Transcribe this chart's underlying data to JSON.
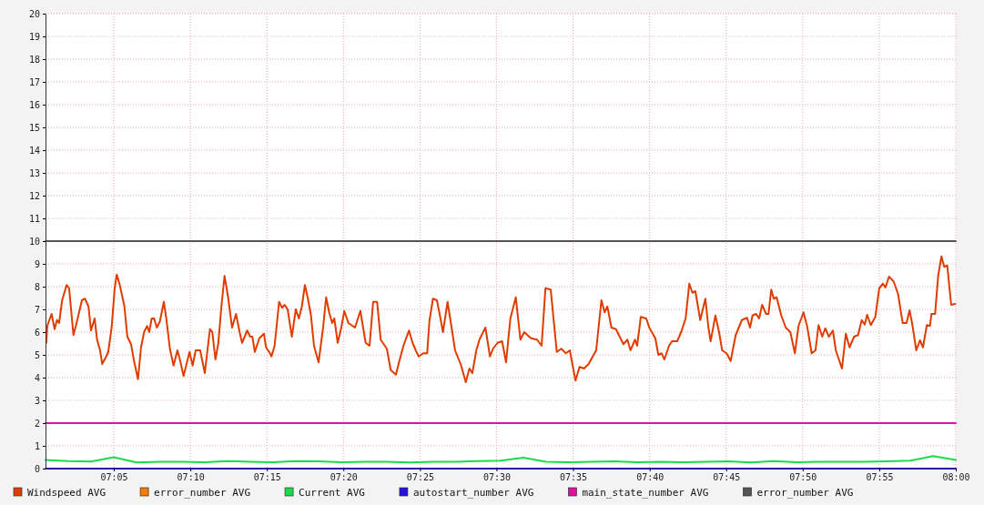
{
  "chart_data": {
    "type": "line",
    "xlim": [
      7.009,
      8.0
    ],
    "ylim": [
      0,
      20
    ],
    "yticks": [
      0,
      1,
      2,
      3,
      4,
      5,
      6,
      7,
      8,
      9,
      10,
      11,
      12,
      13,
      14,
      15,
      16,
      17,
      18,
      19,
      20
    ],
    "xticks": [
      {
        "value": 7.0833,
        "label": "07:05"
      },
      {
        "value": 7.1667,
        "label": "07:10"
      },
      {
        "value": 7.25,
        "label": "07:15"
      },
      {
        "value": 7.3333,
        "label": "07:20"
      },
      {
        "value": 7.4167,
        "label": "07:25"
      },
      {
        "value": 7.5,
        "label": "07:30"
      },
      {
        "value": 7.5833,
        "label": "07:35"
      },
      {
        "value": 7.6667,
        "label": "07:40"
      },
      {
        "value": 7.75,
        "label": "07:45"
      },
      {
        "value": 7.8333,
        "label": "07:50"
      },
      {
        "value": 7.9167,
        "label": "07:55"
      },
      {
        "value": 8.0,
        "label": "08:00"
      }
    ],
    "grid": true,
    "legend": "bottom",
    "marker": "none",
    "line_style": "solid",
    "series": [
      {
        "name": "Windspeed AVG",
        "color": "#e03c00",
        "x": [
          7.0099,
          7.0109,
          7.0156,
          7.0189,
          7.0215,
          7.0238,
          7.0271,
          7.032,
          7.0347,
          7.0394,
          7.0436,
          7.0486,
          7.0519,
          7.0558,
          7.0585,
          7.0625,
          7.0651,
          7.0684,
          7.0707,
          7.0751,
          7.0773,
          7.081,
          7.0843,
          7.0866,
          7.0899,
          7.0949,
          7.0981,
          7.1021,
          7.1054,
          7.1097,
          7.113,
          7.1163,
          7.1196,
          7.1219,
          7.1246,
          7.1272,
          7.1302,
          7.1335,
          7.1378,
          7.1405,
          7.1444,
          7.1484,
          7.1526,
          7.1553,
          7.1593,
          7.1658,
          7.1692,
          7.1725,
          7.1774,
          7.1824,
          7.188,
          7.1906,
          7.194,
          7.1972,
          7.2005,
          7.2039,
          7.2078,
          7.2121,
          7.2164,
          7.2203,
          7.223,
          7.2286,
          7.2319,
          7.2342,
          7.2369,
          7.2418,
          7.2468,
          7.2491,
          7.2534,
          7.255,
          7.2584,
          7.2633,
          7.2666,
          7.2693,
          7.2726,
          7.2772,
          7.2815,
          7.2848,
          7.2881,
          7.2914,
          7.2947,
          7.298,
          7.3013,
          7.3063,
          7.3112,
          7.3145,
          7.3178,
          7.3211,
          7.3234,
          7.3271,
          7.331,
          7.3343,
          7.3387,
          7.3459,
          7.3518,
          7.3575,
          7.3618,
          7.3657,
          7.37,
          7.3739,
          7.3806,
          7.3848,
          7.3905,
          7.3938,
          7.3987,
          7.4047,
          7.4086,
          7.412,
          7.4153,
          7.4202,
          7.4245,
          7.4269,
          7.4308,
          7.4351,
          7.4384,
          7.4417,
          7.4467,
          7.4506,
          7.4549,
          7.4615,
          7.4665,
          7.4705,
          7.4737,
          7.478,
          7.4814,
          7.4879,
          7.4929,
          7.4962,
          7.5012,
          7.5061,
          7.5104,
          7.5151,
          7.521,
          7.526,
          7.5302,
          7.5375,
          7.5441,
          7.5491,
          7.5533,
          7.559,
          7.5656,
          7.5706,
          7.5755,
          7.5798,
          7.586,
          7.5904,
          7.5953,
          7.6003,
          7.6085,
          7.6142,
          7.6177,
          7.6207,
          7.6251,
          7.63,
          7.6382,
          7.6425,
          7.6459,
          7.6508,
          7.6531,
          7.6571,
          7.663,
          7.6663,
          7.6729,
          7.6762,
          7.6796,
          7.6828,
          7.6878,
          7.6911,
          7.6967,
          7.701,
          7.7059,
          7.7099,
          7.7133,
          7.7165,
          7.7218,
          7.7274,
          7.7307,
          7.7331,
          7.7383,
          7.7423,
          7.7456,
          7.7505,
          7.7549,
          7.7604,
          7.7671,
          7.7727,
          7.776,
          7.7787,
          7.7826,
          7.7859,
          7.7892,
          7.7935,
          7.7961,
          7.7991,
          7.8018,
          7.805,
          7.81,
          7.8149,
          7.8199,
          7.8248,
          7.8288,
          7.8342,
          7.8381,
          7.8431,
          7.8473,
          7.8506,
          7.8546,
          7.8579,
          7.8619,
          7.8662,
          7.8694,
          7.8761,
          7.8803,
          7.8843,
          7.8893,
          7.8936,
          7.8976,
          7.9009,
          7.9035,
          7.9075,
          7.9124,
          7.9167,
          7.9207,
          7.9234,
          7.9273,
          7.9323,
          7.9372,
          7.9422,
          7.9464,
          7.9497,
          7.9524,
          7.957,
          7.961,
          7.9643,
          7.9685,
          7.9719,
          7.9735,
          7.9775,
          7.9808,
          7.9844,
          7.9874,
          7.9907,
          7.995,
          7.9993
        ],
        "values": [
          5.53,
          6.27,
          6.8,
          6.13,
          6.53,
          6.4,
          7.4,
          8.07,
          7.93,
          5.87,
          6.53,
          7.4,
          7.47,
          7.13,
          6.07,
          6.6,
          5.67,
          5.2,
          4.6,
          4.93,
          5.13,
          6.2,
          7.93,
          8.53,
          8.07,
          7.13,
          5.8,
          5.47,
          4.73,
          3.93,
          5.33,
          6,
          6.27,
          6,
          6.6,
          6.6,
          6.2,
          6.47,
          7.33,
          6.6,
          5.27,
          4.53,
          5.2,
          4.8,
          4.07,
          5.13,
          4.53,
          5.2,
          5.2,
          4.2,
          6.13,
          6,
          4.8,
          5.53,
          7.13,
          8.47,
          7.53,
          6.2,
          6.8,
          6,
          5.53,
          6.07,
          5.8,
          5.8,
          5.13,
          5.73,
          5.93,
          5.33,
          5.07,
          4.93,
          5.4,
          7.33,
          7.07,
          7.2,
          7,
          5.8,
          7,
          6.6,
          7.13,
          8.07,
          7.47,
          6.73,
          5.4,
          4.67,
          6.2,
          7.53,
          6.87,
          6.4,
          6.6,
          5.53,
          6.2,
          6.93,
          6.4,
          6.2,
          6.93,
          5.53,
          5.4,
          7.33,
          7.33,
          5.67,
          5.27,
          4.33,
          4.13,
          4.67,
          5.4,
          6.07,
          5.53,
          5.2,
          4.93,
          5.07,
          5.07,
          6.47,
          7.47,
          7.4,
          6.73,
          6,
          7.33,
          6.33,
          5.2,
          4.53,
          3.8,
          4.4,
          4.2,
          5.2,
          5.67,
          6.2,
          4.93,
          5.27,
          5.53,
          5.6,
          4.67,
          6.6,
          7.53,
          5.67,
          6,
          5.73,
          5.67,
          5.4,
          7.93,
          7.87,
          5.13,
          5.27,
          5.07,
          5.2,
          3.87,
          4.47,
          4.4,
          4.6,
          5.2,
          7.4,
          6.87,
          7.13,
          6.2,
          6.13,
          5.47,
          5.67,
          5.2,
          5.67,
          5.4,
          6.67,
          6.6,
          6.2,
          5.73,
          5,
          5.07,
          4.8,
          5.4,
          5.6,
          5.6,
          6,
          6.6,
          8.13,
          7.73,
          7.8,
          6.53,
          7.47,
          6.2,
          5.6,
          6.73,
          6,
          5.2,
          5.07,
          4.73,
          5.87,
          6.53,
          6.63,
          6.2,
          6.73,
          6.8,
          6.6,
          7.2,
          6.8,
          6.8,
          7.87,
          7.47,
          7.53,
          6.73,
          6.2,
          6,
          5.07,
          6.27,
          6.87,
          6.27,
          5.07,
          5.2,
          6.31,
          5.8,
          6.17,
          5.8,
          6.07,
          5.2,
          4.4,
          5.93,
          5.33,
          5.8,
          5.87,
          6.53,
          6.33,
          6.76,
          6.31,
          6.67,
          7.93,
          8.13,
          7.96,
          8.44,
          8.23,
          7.67,
          6.4,
          6.4,
          6.96,
          6.4,
          5.2,
          5.64,
          5.33,
          6.31,
          6.27,
          6.8,
          6.8,
          8.47,
          9.33,
          8.87,
          8.93,
          7.2,
          7.24
        ]
      },
      {
        "name": "error_number AVG",
        "color": "#f07c0c"
      },
      {
        "name": "Current AVG",
        "color": "#1adb4a",
        "x": [
          7.009,
          7.0338,
          7.0586,
          7.0833,
          7.1081,
          7.1329,
          7.1577,
          7.1824,
          7.2072,
          7.232,
          7.2568,
          7.2815,
          7.3063,
          7.3311,
          7.3559,
          7.3806,
          7.4054,
          7.4302,
          7.455,
          7.4797,
          7.5045,
          7.5293,
          7.5541,
          7.5788,
          7.6036,
          7.6284,
          7.6532,
          7.6779,
          7.7027,
          7.7275,
          7.7523,
          7.777,
          7.8018,
          7.8266,
          7.8514,
          7.8761,
          7.9009,
          7.9257,
          7.9505,
          7.9752,
          8.0
        ],
        "values": [
          0.38,
          0.33,
          0.31,
          0.5,
          0.27,
          0.3,
          0.3,
          0.28,
          0.33,
          0.3,
          0.28,
          0.33,
          0.32,
          0.28,
          0.3,
          0.3,
          0.27,
          0.3,
          0.3,
          0.33,
          0.35,
          0.48,
          0.3,
          0.28,
          0.3,
          0.32,
          0.28,
          0.3,
          0.28,
          0.3,
          0.32,
          0.27,
          0.33,
          0.28,
          0.3,
          0.3,
          0.3,
          0.32,
          0.35,
          0.55,
          0.38
        ]
      },
      {
        "name": "autostart_number AVG",
        "color": "#2211dd",
        "x": [
          7.009,
          8.0
        ],
        "values": [
          0,
          0
        ]
      },
      {
        "name": "main_state_number AVG",
        "color": "#e0109a",
        "x": [
          7.009,
          8.0
        ],
        "values": [
          2,
          2
        ]
      },
      {
        "name": "error_number AVG",
        "color": "#555555",
        "x": [
          7.009,
          8.0
        ],
        "values": [
          10,
          10
        ]
      }
    ]
  }
}
